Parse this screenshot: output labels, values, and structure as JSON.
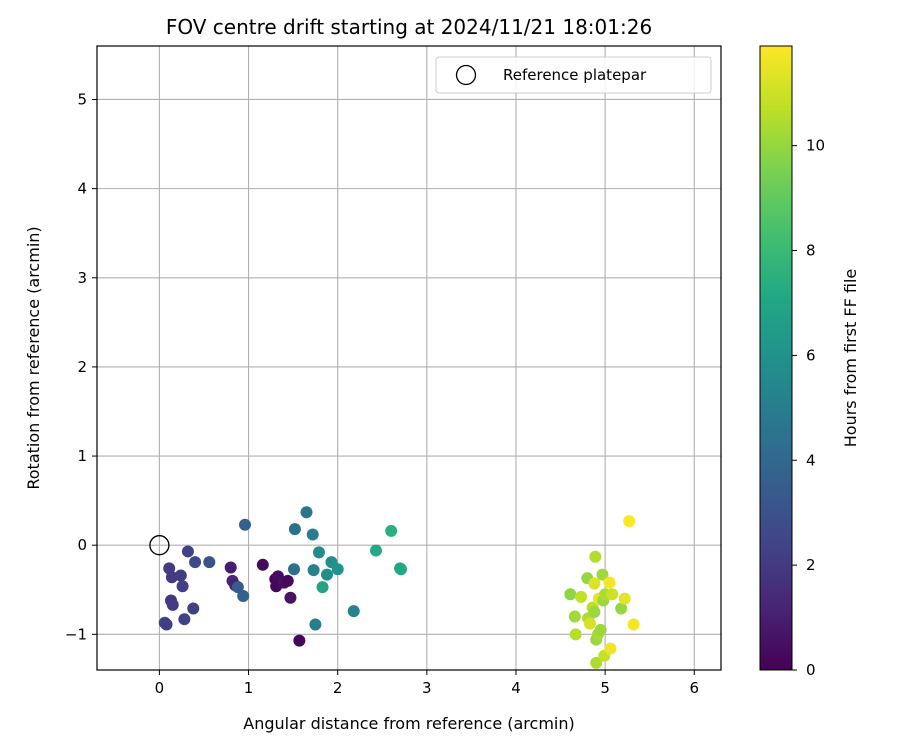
{
  "chart_data": {
    "type": "scatter",
    "title": "FOV centre drift starting at 2024/11/21 18:01:26",
    "xlabel": "Angular distance from reference (arcmin)",
    "ylabel": "Rotation from reference (arcmin)",
    "xlim": [
      -0.7,
      6.3
    ],
    "ylim": [
      -1.4,
      5.6
    ],
    "xticks": [
      "0",
      "1",
      "2",
      "3",
      "4",
      "5",
      "6"
    ],
    "yticks": [
      "−1",
      "0",
      "1",
      "2",
      "3",
      "4",
      "5"
    ],
    "grid": true,
    "legend": {
      "placement": "top-right",
      "entries": [
        "Reference platepar"
      ]
    },
    "reference_point": {
      "label": "Reference platepar",
      "x": 0,
      "y": 0
    },
    "colorbar": {
      "label": "Hours from first FF file",
      "colormap": "viridis",
      "range": [
        0,
        11.9
      ],
      "ticks": [
        "0",
        "2",
        "4",
        "6",
        "8",
        "10"
      ]
    },
    "points": [
      {
        "x": 1.16,
        "y": -0.22,
        "h": 0.3
      },
      {
        "x": 1.3,
        "y": -0.38,
        "h": 0.1
      },
      {
        "x": 1.33,
        "y": -0.35,
        "h": 0.4
      },
      {
        "x": 1.31,
        "y": -0.46,
        "h": 0.2
      },
      {
        "x": 1.4,
        "y": -0.42,
        "h": 0.5
      },
      {
        "x": 1.44,
        "y": -0.4,
        "h": 0.3
      },
      {
        "x": 1.47,
        "y": -0.59,
        "h": 0.6
      },
      {
        "x": 1.57,
        "y": -1.07,
        "h": 0.2
      },
      {
        "x": 0.8,
        "y": -0.25,
        "h": 0.9
      },
      {
        "x": 0.82,
        "y": -0.4,
        "h": 1.3
      },
      {
        "x": 0.85,
        "y": -0.45,
        "h": 1.1
      },
      {
        "x": 0.32,
        "y": -0.07,
        "h": 2.3
      },
      {
        "x": 0.4,
        "y": -0.19,
        "h": 2.6
      },
      {
        "x": 0.56,
        "y": -0.19,
        "h": 3.1
      },
      {
        "x": 0.11,
        "y": -0.26,
        "h": 2.1
      },
      {
        "x": 0.14,
        "y": -0.36,
        "h": 2.0
      },
      {
        "x": 0.24,
        "y": -0.34,
        "h": 2.1
      },
      {
        "x": 0.26,
        "y": -0.46,
        "h": 2.2
      },
      {
        "x": 0.13,
        "y": -0.62,
        "h": 1.9
      },
      {
        "x": 0.15,
        "y": -0.67,
        "h": 2.0
      },
      {
        "x": 0.38,
        "y": -0.71,
        "h": 2.2
      },
      {
        "x": 0.28,
        "y": -0.83,
        "h": 2.3
      },
      {
        "x": 0.06,
        "y": -0.87,
        "h": 2.4
      },
      {
        "x": 0.08,
        "y": -0.89,
        "h": 2.1
      },
      {
        "x": 0.96,
        "y": 0.23,
        "h": 3.7
      },
      {
        "x": 0.94,
        "y": -0.57,
        "h": 3.6
      },
      {
        "x": 0.88,
        "y": -0.47,
        "h": 3.4
      },
      {
        "x": 1.52,
        "y": 0.18,
        "h": 4.4
      },
      {
        "x": 1.51,
        "y": -0.27,
        "h": 4.3
      },
      {
        "x": 1.65,
        "y": 0.37,
        "h": 4.6
      },
      {
        "x": 1.72,
        "y": 0.12,
        "h": 5.0
      },
      {
        "x": 1.73,
        "y": -0.28,
        "h": 5.2
      },
      {
        "x": 1.75,
        "y": -0.89,
        "h": 5.1
      },
      {
        "x": 1.79,
        "y": -0.08,
        "h": 5.6
      },
      {
        "x": 1.88,
        "y": -0.33,
        "h": 5.8
      },
      {
        "x": 1.93,
        "y": -0.19,
        "h": 5.9
      },
      {
        "x": 2.0,
        "y": -0.27,
        "h": 6.0
      },
      {
        "x": 1.83,
        "y": -0.47,
        "h": 6.9
      },
      {
        "x": 2.18,
        "y": -0.74,
        "h": 5.3
      },
      {
        "x": 2.43,
        "y": -0.06,
        "h": 7.2
      },
      {
        "x": 2.6,
        "y": 0.16,
        "h": 7.5
      },
      {
        "x": 2.7,
        "y": -0.26,
        "h": 6.9
      },
      {
        "x": 2.71,
        "y": -0.27,
        "h": 7.1
      },
      {
        "x": 4.61,
        "y": -0.55,
        "h": 9.9
      },
      {
        "x": 4.66,
        "y": -0.8,
        "h": 10.2
      },
      {
        "x": 4.67,
        "y": -1.0,
        "h": 10.6
      },
      {
        "x": 4.73,
        "y": -0.58,
        "h": 10.8
      },
      {
        "x": 4.8,
        "y": -0.37,
        "h": 10.0
      },
      {
        "x": 4.81,
        "y": -0.82,
        "h": 10.4
      },
      {
        "x": 4.83,
        "y": -0.88,
        "h": 11.2
      },
      {
        "x": 4.86,
        "y": -0.7,
        "h": 10.7
      },
      {
        "x": 4.88,
        "y": -0.43,
        "h": 11.3
      },
      {
        "x": 4.88,
        "y": -0.75,
        "h": 10.1
      },
      {
        "x": 4.89,
        "y": -0.13,
        "h": 10.5
      },
      {
        "x": 4.9,
        "y": -1.06,
        "h": 10.1
      },
      {
        "x": 4.92,
        "y": -1.0,
        "h": 10.3
      },
      {
        "x": 4.9,
        "y": -1.32,
        "h": 10.4
      },
      {
        "x": 4.93,
        "y": -0.6,
        "h": 11.5
      },
      {
        "x": 4.95,
        "y": -0.95,
        "h": 10.1
      },
      {
        "x": 4.97,
        "y": -0.33,
        "h": 10.2
      },
      {
        "x": 4.98,
        "y": -0.62,
        "h": 10.1
      },
      {
        "x": 5.0,
        "y": -0.55,
        "h": 10.4
      },
      {
        "x": 4.99,
        "y": -1.24,
        "h": 10.9
      },
      {
        "x": 5.05,
        "y": -0.42,
        "h": 11.7
      },
      {
        "x": 5.06,
        "y": -1.16,
        "h": 11.6
      },
      {
        "x": 5.08,
        "y": -0.55,
        "h": 11.0
      },
      {
        "x": 5.18,
        "y": -0.71,
        "h": 10.0
      },
      {
        "x": 5.22,
        "y": -0.6,
        "h": 11.4
      },
      {
        "x": 5.27,
        "y": 0.27,
        "h": 11.9
      },
      {
        "x": 5.32,
        "y": -0.89,
        "h": 11.7
      }
    ]
  }
}
